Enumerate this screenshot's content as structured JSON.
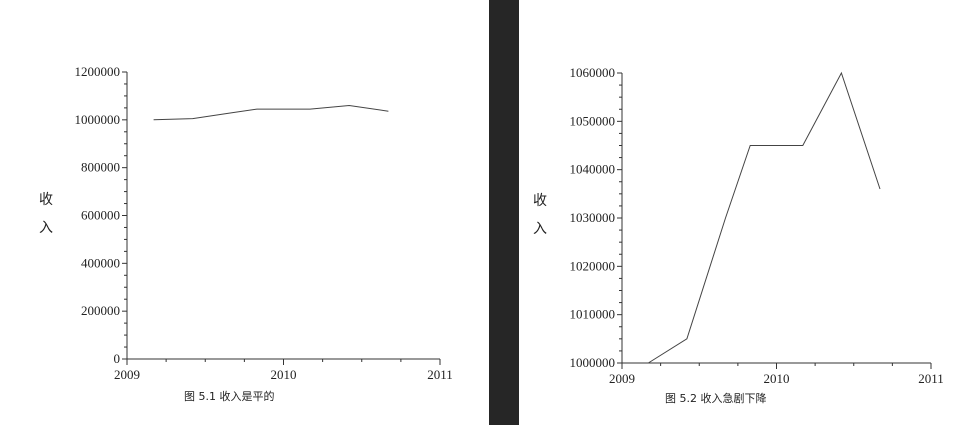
{
  "chart_data": [
    {
      "type": "line",
      "xlabel": "",
      "ylabel": "收入",
      "caption": "图 5.1   收入是平的",
      "xlim": [
        2009,
        2011
      ],
      "ylim": [
        0,
        1200000
      ],
      "xticks": [
        "2009",
        "2010",
        "2011"
      ],
      "yticks": [
        "0",
        "200000",
        "400000",
        "600000",
        "800000",
        "1000000",
        "1200000"
      ],
      "grid": false,
      "series": [
        {
          "x": [
            2009.17,
            2009.42,
            2009.67,
            2009.83,
            2010.0,
            2010.17,
            2010.42,
            2010.67
          ],
          "values": [
            1000000,
            1005000,
            1030000,
            1045000,
            1045000,
            1045000,
            1060000,
            1036000
          ]
        }
      ]
    },
    {
      "type": "line",
      "xlabel": "",
      "ylabel": "收入",
      "caption": "图 5.2   收入急剧下降",
      "xlim": [
        2009,
        2011
      ],
      "ylim": [
        1000000,
        1060000
      ],
      "xticks": [
        "2009",
        "2010",
        "2011"
      ],
      "yticks": [
        "1000000",
        "1010000",
        "1020000",
        "1030000",
        "1040000",
        "1050000",
        "1060000"
      ],
      "grid": false,
      "series": [
        {
          "x": [
            2009.17,
            2009.42,
            2009.67,
            2009.83,
            2010.0,
            2010.17,
            2010.42,
            2010.67
          ],
          "values": [
            1000000,
            1005000,
            1030000,
            1045000,
            1045000,
            1045000,
            1060000,
            1036000
          ]
        }
      ]
    }
  ]
}
